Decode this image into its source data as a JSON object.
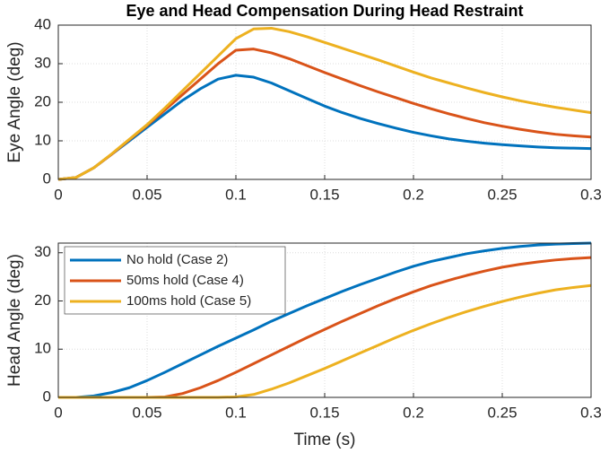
{
  "chart_data": [
    {
      "type": "line",
      "title": "Eye and Head Compensation During Head Restraint",
      "ylabel": "Eye Angle (deg)",
      "x": [
        0,
        0.01,
        0.02,
        0.03,
        0.04,
        0.05,
        0.06,
        0.07,
        0.08,
        0.09,
        0.1,
        0.11,
        0.12,
        0.13,
        0.14,
        0.15,
        0.16,
        0.17,
        0.18,
        0.19,
        0.2,
        0.21,
        0.22,
        0.23,
        0.24,
        0.25,
        0.26,
        0.27,
        0.28,
        0.29,
        0.3
      ],
      "xlim": [
        0,
        0.3
      ],
      "xticks": [
        0,
        0.05,
        0.1,
        0.15,
        0.2,
        0.25,
        0.3
      ],
      "ylim": [
        0,
        40
      ],
      "yticks": [
        0,
        10,
        20,
        30,
        40
      ],
      "grid": true,
      "series": [
        {
          "color": "#0072bd",
          "values": [
            0,
            0.5,
            3,
            6.5,
            10,
            13.5,
            17,
            20.5,
            23.5,
            26,
            27,
            26.5,
            25,
            23,
            21,
            19,
            17.3,
            15.8,
            14.5,
            13.3,
            12.2,
            11.3,
            10.5,
            9.9,
            9.4,
            9,
            8.7,
            8.4,
            8.2,
            8.1,
            8
          ]
        },
        {
          "color": "#d95319",
          "values": [
            0,
            0.5,
            3,
            6.5,
            10.3,
            14,
            18,
            22,
            26,
            30,
            33.5,
            33.8,
            32.8,
            31.3,
            29.5,
            27.7,
            26,
            24.3,
            22.7,
            21.2,
            19.7,
            18.3,
            17,
            15.8,
            14.7,
            13.8,
            13,
            12.3,
            11.7,
            11.3,
            11
          ]
        },
        {
          "color": "#edb120",
          "values": [
            0,
            0.5,
            3,
            6.6,
            10.4,
            14.2,
            18.5,
            23,
            27.5,
            32,
            36.5,
            39,
            39.2,
            38.3,
            37,
            35.5,
            34,
            32.5,
            31,
            29.4,
            27.8,
            26.3,
            25,
            23.7,
            22.5,
            21.4,
            20.4,
            19.5,
            18.7,
            18,
            17.3
          ]
        }
      ]
    },
    {
      "type": "line",
      "ylabel": "Head Angle (deg)",
      "xlabel": "Time (s)",
      "x": [
        0,
        0.01,
        0.02,
        0.03,
        0.04,
        0.05,
        0.06,
        0.07,
        0.08,
        0.09,
        0.1,
        0.11,
        0.12,
        0.13,
        0.14,
        0.15,
        0.16,
        0.17,
        0.18,
        0.19,
        0.2,
        0.21,
        0.22,
        0.23,
        0.24,
        0.25,
        0.26,
        0.27,
        0.28,
        0.29,
        0.3
      ],
      "xlim": [
        0,
        0.3
      ],
      "xticks": [
        0,
        0.05,
        0.1,
        0.15,
        0.2,
        0.25,
        0.3
      ],
      "ylim": [
        0,
        32
      ],
      "yticks": [
        0,
        10,
        20,
        30
      ],
      "grid": true,
      "legend": "upper left",
      "series": [
        {
          "name": "No hold (Case 2)",
          "color": "#0072bd",
          "values": [
            0,
            0,
            0.3,
            1,
            2,
            3.5,
            5.2,
            7,
            8.8,
            10.6,
            12.3,
            14,
            15.8,
            17.4,
            19,
            20.5,
            22,
            23.4,
            24.7,
            26,
            27.2,
            28.2,
            29,
            29.8,
            30.4,
            30.9,
            31.3,
            31.6,
            31.8,
            31.9,
            32
          ]
        },
        {
          "name": "50ms hold (Case 4)",
          "color": "#d95319",
          "values": [
            0,
            0,
            0,
            0,
            0,
            0,
            0.1,
            0.8,
            2,
            3.5,
            5.2,
            7,
            8.8,
            10.6,
            12.4,
            14.1,
            15.8,
            17.4,
            19,
            20.5,
            21.9,
            23.2,
            24.3,
            25.3,
            26.2,
            27,
            27.6,
            28.1,
            28.5,
            28.8,
            29
          ]
        },
        {
          "name": "100ms hold (Case 5)",
          "color": "#edb120",
          "values": [
            0,
            0,
            0,
            0,
            0,
            0,
            0,
            0,
            0,
            0,
            0.1,
            0.6,
            1.7,
            3,
            4.5,
            6,
            7.6,
            9.2,
            10.8,
            12.4,
            13.9,
            15.3,
            16.6,
            17.8,
            18.9,
            19.9,
            20.8,
            21.6,
            22.3,
            22.8,
            23.2
          ]
        }
      ]
    }
  ]
}
